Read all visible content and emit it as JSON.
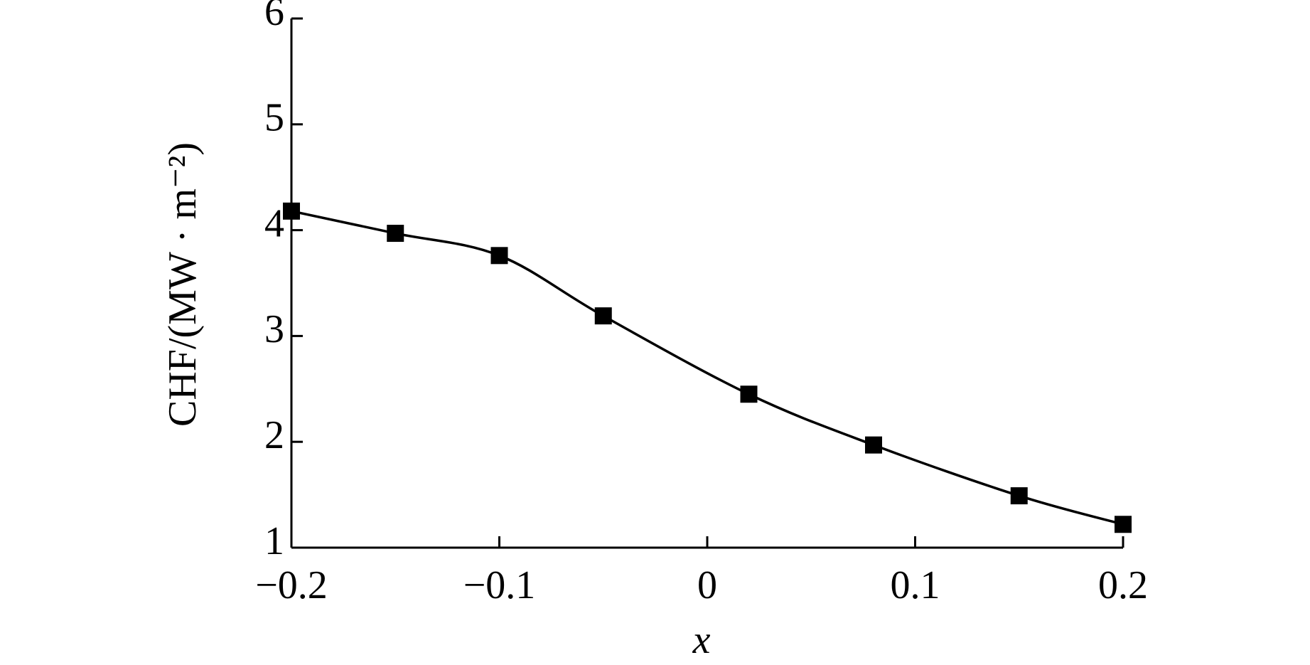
{
  "chart_data": {
    "type": "line",
    "x_label": "x",
    "y_label": "CHF/(MW · m⁻²)",
    "series": [
      {
        "color": "#000000",
        "x": [
          -0.2,
          -0.15,
          -0.1,
          -0.05,
          0.02,
          0.08,
          0.15,
          0.2
        ],
        "values": [
          4.18,
          3.97,
          3.76,
          3.19,
          2.45,
          1.97,
          1.49,
          1.22
        ]
      }
    ],
    "xlim": [
      -0.2,
      0.2
    ],
    "xticks": [
      {
        "value": -0.2,
        "label": "−0.2"
      },
      {
        "value": -0.1,
        "label": "−0.1"
      },
      0,
      0.1,
      0.2
    ],
    "ylim": [
      1,
      6
    ],
    "yticks": [
      1,
      2,
      3,
      4,
      5,
      6
    ],
    "grid": false,
    "marker": "square"
  }
}
